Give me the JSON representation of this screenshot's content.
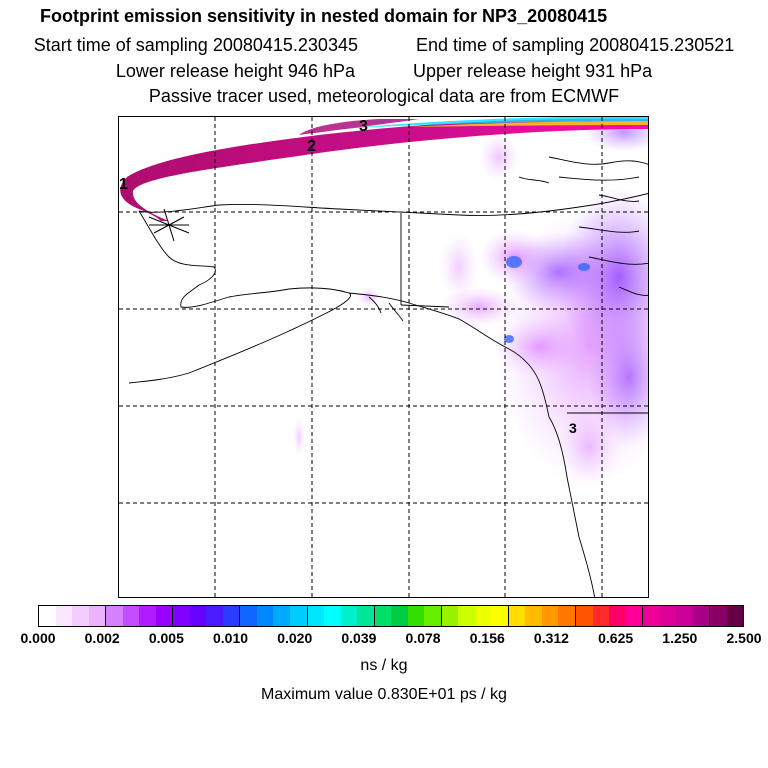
{
  "header": {
    "title": "Footprint emission sensitivity in nested domain for NP3_20080415",
    "start_label": "Start time of sampling 20080415.230345",
    "end_label": "End time of sampling 20080415.230521",
    "lower_label": "Lower release height  946 hPa",
    "upper_label": "Upper release height  931 hPa",
    "tracer_note": "Passive tracer used, meteorological data are from ECMWF"
  },
  "map": {
    "trajectory_labels": [
      "1",
      "2",
      "3"
    ]
  },
  "colorbar": {
    "tick_labels": [
      "0.000",
      "0.002",
      "0.005",
      "0.010",
      "0.020",
      "0.039",
      "0.078",
      "0.156",
      "0.312",
      "0.625",
      "1.250",
      "2.500"
    ],
    "colors": [
      "#ffffff",
      "#fbe6ff",
      "#f3ccff",
      "#ebb2ff",
      "#d580ff",
      "#c34dff",
      "#b21aff",
      "#9900ff",
      "#7f00ff",
      "#6600ff",
      "#4c1aff",
      "#2a3dff",
      "#1166ff",
      "#0088ff",
      "#00aaff",
      "#00ccff",
      "#00e6ff",
      "#00ffff",
      "#00f0cc",
      "#00e699",
      "#00e066",
      "#00cc44",
      "#33dd00",
      "#66ee00",
      "#99f000",
      "#ccff00",
      "#eeff00",
      "#ffff00",
      "#ffdd00",
      "#ffbb00",
      "#ff9900",
      "#ff7700",
      "#ff5500",
      "#ff2a2a",
      "#ff0066",
      "#ff0099",
      "#ee0099",
      "#dd0099",
      "#cc0099",
      "#aa0088",
      "#880066",
      "#660044"
    ],
    "units": "ns / kg",
    "max_value": "Maximum value  0.830E+01 ps / kg"
  }
}
